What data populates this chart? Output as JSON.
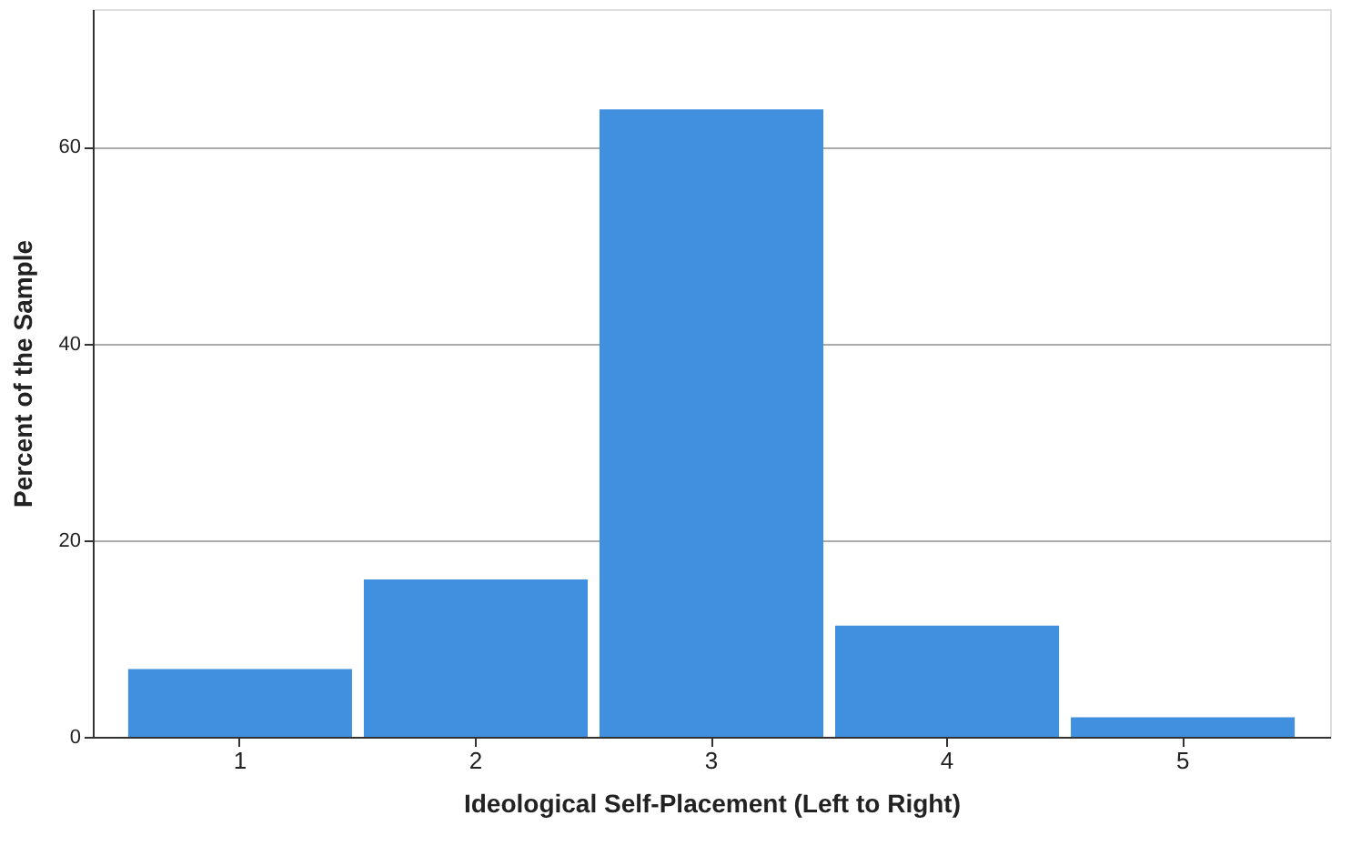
{
  "chart_data": {
    "type": "bar",
    "xlabel": "Ideological Self-Placement (Left to Right)",
    "ylabel": "Percent of the Sample",
    "categories": [
      "1",
      "2",
      "3",
      "4",
      "5"
    ],
    "values": [
      6.9,
      16.0,
      63.8,
      11.3,
      2.0
    ],
    "color": "#4190e0",
    "ylim": [
      0,
      74
    ],
    "yticks": [
      0,
      20,
      40,
      60
    ],
    "grid": "y"
  }
}
